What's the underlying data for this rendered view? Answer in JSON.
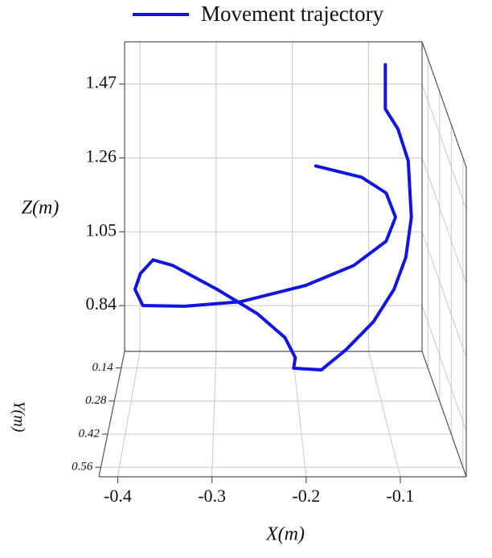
{
  "chart_data": {
    "type": "line3d",
    "xlabel": "X(m)",
    "ylabel": "Y(m)",
    "zlabel": "Z(m)",
    "xlim": [
      -0.42,
      -0.03
    ],
    "xticks": [
      -0.4,
      -0.3,
      -0.2,
      -0.1
    ],
    "ylim": [
      0.07,
      0.6
    ],
    "yticks": [
      0.14,
      0.28,
      0.42,
      0.56
    ],
    "zlim": [
      0.71,
      1.59
    ],
    "zticks": [
      0.84,
      1.05,
      1.26,
      1.47
    ],
    "grid": true,
    "legend": "top",
    "series": [
      {
        "name": "Movement trajectory",
        "color": "#1414e0",
        "x": [
          -0.085,
          -0.085,
          -0.069,
          -0.056,
          -0.052,
          -0.059,
          -0.074,
          -0.1,
          -0.135,
          -0.166,
          -0.201,
          -0.199,
          -0.212,
          -0.247,
          -0.298,
          -0.354,
          -0.379,
          -0.395,
          -0.402,
          -0.392,
          -0.339,
          -0.268,
          -0.186,
          -0.125,
          -0.084,
          -0.072,
          -0.084,
          -0.115,
          -0.173
        ],
        "y": [
          0.15,
          0.15,
          0.15,
          0.15,
          0.15,
          0.15,
          0.15,
          0.15,
          0.15,
          0.15,
          0.15,
          0.15,
          0.15,
          0.15,
          0.15,
          0.15,
          0.15,
          0.15,
          0.15,
          0.15,
          0.15,
          0.15,
          0.15,
          0.15,
          0.15,
          0.15,
          0.15,
          0.15,
          0.15
        ],
        "z": [
          1.579,
          1.453,
          1.396,
          1.305,
          1.145,
          1.031,
          0.94,
          0.848,
          0.768,
          0.711,
          0.716,
          0.746,
          0.803,
          0.871,
          0.94,
          1.008,
          1.024,
          0.985,
          0.94,
          0.894,
          0.892,
          0.905,
          0.951,
          1.008,
          1.077,
          1.145,
          1.214,
          1.259,
          1.291
        ]
      }
    ]
  }
}
